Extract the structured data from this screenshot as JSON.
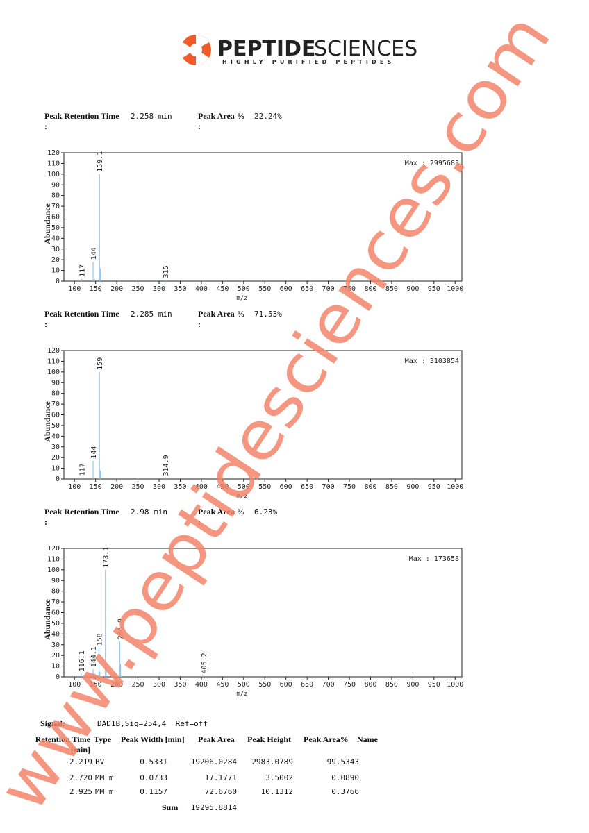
{
  "header": {
    "brand_bold": "PEPTIDE",
    "brand_light": "SCIENCES",
    "tagline": "HIGHLY PURIFIED PEPTIDES"
  },
  "watermark": "www.peptidesciences.com",
  "chart_data": [
    {
      "type": "bar",
      "retention_label": "Peak Retention Time\n:",
      "retention_time": "2.258 min",
      "area_label": "Peak Area %\n:",
      "area_percent": "22.24%",
      "max_text": "Max : 2995683",
      "xlabel": "m/z",
      "ylabel": "Abundance",
      "color": "#8cc8ee",
      "x": [
        117,
        144,
        159.1,
        315
      ],
      "values": [
        2,
        18,
        100,
        1
      ],
      "minor_x": [
        147,
        161
      ],
      "minor_values": [
        2,
        12
      ],
      "xlim": [
        75,
        1016
      ],
      "xticks": [
        100,
        150,
        200,
        250,
        300,
        350,
        400,
        450,
        500,
        550,
        600,
        650,
        700,
        750,
        800,
        850,
        900,
        950,
        1000
      ],
      "ylim": [
        0,
        120
      ],
      "yticks": [
        0,
        10,
        20,
        30,
        40,
        50,
        60,
        70,
        80,
        90,
        100,
        110,
        120
      ]
    },
    {
      "type": "bar",
      "retention_label": "Peak Retention Time\n:",
      "retention_time": "2.285 min",
      "area_label": "Peak Area %\n:",
      "area_percent": "71.53%",
      "max_text": "Max : 3103854",
      "xlabel": "m/z",
      "ylabel": "Abundance",
      "color": "#8cc8ee",
      "x": [
        117,
        144,
        159,
        314.9
      ],
      "values": [
        1,
        17,
        100,
        1
      ],
      "minor_x": [
        161
      ],
      "minor_values": [
        8
      ],
      "xlim": [
        75,
        1016
      ],
      "xticks": [
        100,
        150,
        200,
        250,
        300,
        350,
        400,
        450,
        500,
        550,
        600,
        650,
        700,
        750,
        800,
        850,
        900,
        950,
        1000
      ],
      "ylim": [
        0,
        120
      ],
      "yticks": [
        0,
        10,
        20,
        30,
        40,
        50,
        60,
        70,
        80,
        90,
        100,
        110,
        120
      ]
    },
    {
      "type": "bar",
      "retention_label": "Peak Retention Time\n:",
      "retention_time": "2.98 min",
      "area_label": "Peak Area %\n:",
      "area_percent": "6.23%",
      "max_text": "Max : 173658",
      "xlabel": "m/z",
      "ylabel": "Abundance",
      "color": "#8cc8ee",
      "x": [
        116.1,
        144.1,
        158,
        173.1,
        206.9,
        405.2
      ],
      "values": [
        3,
        7,
        27,
        100,
        33,
        1
      ],
      "minor_x": [
        130,
        148,
        160,
        175,
        209
      ],
      "minor_values": [
        2,
        3,
        5,
        8,
        12
      ],
      "xlim": [
        75,
        1016
      ],
      "xticks": [
        100,
        150,
        200,
        250,
        300,
        350,
        400,
        450,
        500,
        550,
        600,
        650,
        700,
        750,
        800,
        850,
        900,
        950,
        1000
      ],
      "ylim": [
        0,
        120
      ],
      "yticks": [
        0,
        10,
        20,
        30,
        40,
        50,
        60,
        70,
        80,
        90,
        100,
        110,
        120
      ]
    }
  ],
  "signal": {
    "label": "Signal:",
    "value": "DAD1B,Sig=254,4  Ref=off"
  },
  "table": {
    "headers": [
      "Retention Time\n[min]",
      "Type",
      "Peak Width [min]",
      "Peak Area",
      "Peak Height",
      "Peak Area%",
      "Name"
    ],
    "rows": [
      [
        "2.219",
        "BV",
        "0.5331",
        "19206.0284",
        "2983.0789",
        "99.5343"
      ],
      [
        "2.720",
        "MM m",
        "0.0733",
        "17.1771",
        "3.5002",
        "0.0890"
      ],
      [
        "2.925",
        "MM m",
        "0.1157",
        "72.6760",
        "10.1312",
        "0.3766"
      ]
    ],
    "sum_label": "Sum",
    "sum_value": "19295.8814"
  }
}
